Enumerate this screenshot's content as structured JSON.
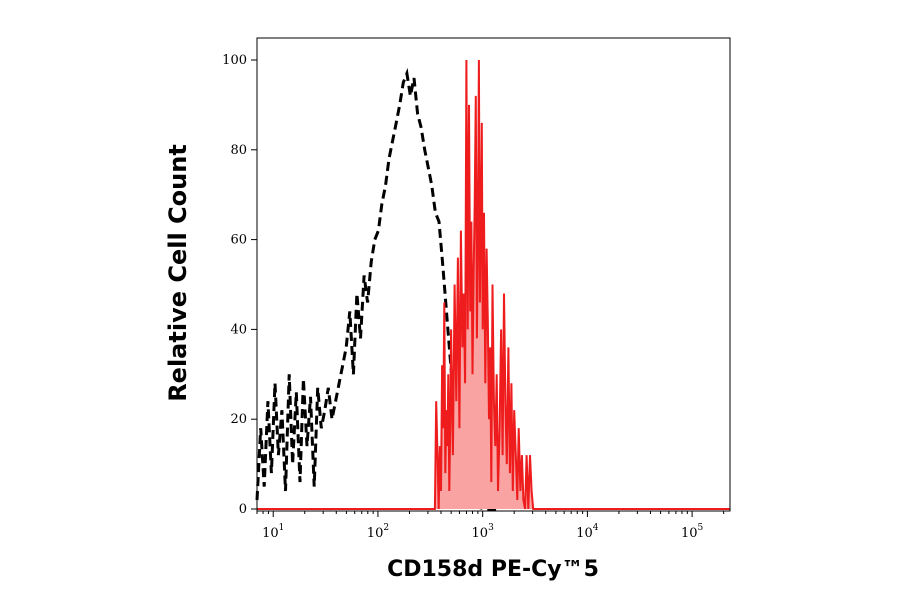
{
  "chart_data": {
    "type": "area",
    "xlabel": "CD158d PE-Cy™5",
    "ylabel": "Relative Cell Count",
    "x_scale": "log",
    "xlim": [
      7,
      230000
    ],
    "ylim": [
      0,
      105
    ],
    "grid": false,
    "legend": "none",
    "y_ticks": [
      {
        "value": 0,
        "label": "0"
      },
      {
        "value": 20,
        "label": "20"
      },
      {
        "value": 40,
        "label": "40"
      },
      {
        "value": 60,
        "label": "60"
      },
      {
        "value": 80,
        "label": "80"
      },
      {
        "value": 100,
        "label": "100"
      }
    ],
    "x_ticks": [
      {
        "value": 10,
        "base": "10",
        "exp": "1"
      },
      {
        "value": 100,
        "base": "10",
        "exp": "2"
      },
      {
        "value": 1000,
        "base": "10",
        "exp": "3"
      },
      {
        "value": 10000,
        "base": "10",
        "exp": "4"
      },
      {
        "value": 100000,
        "base": "10",
        "exp": "5"
      }
    ],
    "series": [
      {
        "style": "dashed",
        "color": "#000000",
        "x": [
          7,
          7.6,
          8.2,
          8.9,
          9.6,
          10.4,
          11.2,
          12.1,
          13.1,
          14.2,
          15.3,
          16.6,
          18,
          19.4,
          21,
          22.7,
          24.6,
          26.6,
          28.8,
          31.1,
          33.6,
          36.4,
          39.4,
          42.6,
          46.1,
          49.8,
          53.9,
          58.3,
          63,
          68.2,
          73.7,
          79.7,
          86.2,
          93.3,
          100.9,
          109.1,
          118,
          127.6,
          138,
          149.3,
          161.5,
          174.7,
          188.9,
          204.3,
          221,
          239,
          258.5,
          279.6,
          302.4,
          327.1,
          353.8,
          382.7,
          413.9,
          447.7,
          484.2,
          523.7,
          566.4,
          612.6,
          662.6,
          716.7,
          775.2,
          838.4,
          906.8,
          980.8,
          1060.8,
          1147.4,
          1241,
          1342.3
        ],
        "y": [
          2,
          18,
          5,
          24,
          8,
          28,
          12,
          22,
          4,
          30,
          10,
          26,
          6,
          29,
          14,
          25,
          5,
          27,
          18,
          22,
          27,
          20,
          24,
          28,
          32,
          36,
          44,
          30,
          48,
          38,
          52,
          46,
          55,
          60,
          62,
          68,
          72,
          78,
          82,
          86,
          90,
          95,
          97,
          92,
          96,
          88,
          85,
          80,
          76,
          72,
          66,
          64,
          55,
          45,
          35,
          25,
          16,
          10,
          6,
          3,
          1.5,
          0.8,
          0.4,
          0.2,
          0.1,
          0,
          0,
          0
        ]
      },
      {
        "style": "solid-filled",
        "color": "#ee1c1c",
        "fill": "#f9a3a3",
        "x": [
          7,
          350,
          360,
          370,
          380,
          390,
          400,
          410,
          420,
          430,
          440,
          450,
          460,
          470,
          480,
          490,
          500,
          520,
          540,
          560,
          580,
          600,
          620,
          640,
          660,
          680,
          700,
          720,
          740,
          760,
          780,
          800,
          820,
          840,
          860,
          880,
          900,
          920,
          940,
          960,
          980,
          1000,
          1030,
          1060,
          1090,
          1120,
          1150,
          1180,
          1210,
          1240,
          1280,
          1320,
          1360,
          1400,
          1450,
          1500,
          1550,
          1600,
          1650,
          1700,
          1760,
          1820,
          1880,
          1940,
          2000,
          2070,
          2140,
          2210,
          2290,
          2370,
          2450,
          2540,
          2630,
          2730,
          2830,
          2930,
          3040,
          3150,
          3270,
          3390,
          3500,
          3600,
          3700,
          230000
        ],
        "y": [
          0,
          0,
          24,
          12,
          0,
          14,
          4,
          32,
          18,
          46,
          8,
          22,
          14,
          30,
          4,
          18,
          40,
          12,
          50,
          24,
          56,
          18,
          62,
          36,
          48,
          28,
          100,
          40,
          90,
          44,
          64,
          30,
          52,
          68,
          92,
          38,
          60,
          100,
          46,
          62,
          86,
          40,
          66,
          28,
          58,
          42,
          20,
          36,
          6,
          50,
          24,
          14,
          30,
          4,
          18,
          40,
          12,
          48,
          24,
          10,
          36,
          8,
          28,
          4,
          22,
          12,
          2,
          18,
          4,
          12,
          2,
          0,
          12,
          0,
          12,
          4,
          0,
          0,
          0,
          0,
          0,
          0,
          0,
          0
        ]
      }
    ]
  }
}
